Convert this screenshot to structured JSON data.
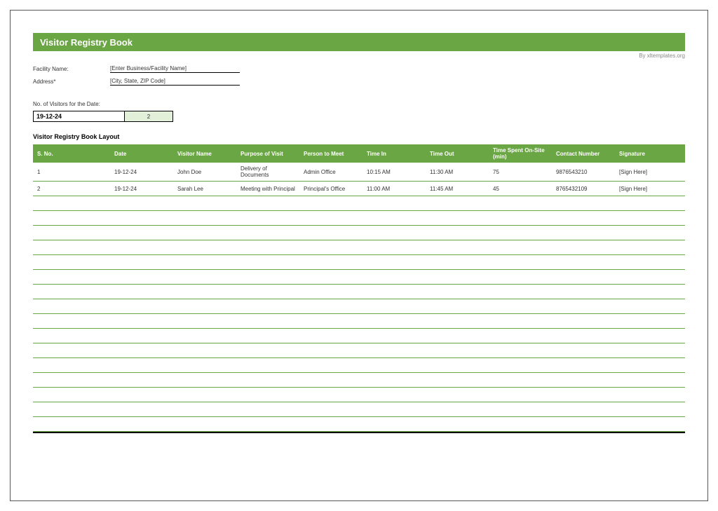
{
  "title": "Visitor Registry Book",
  "byline": "By xltemplates.org",
  "meta": {
    "facility_label": "Facility Name:",
    "facility_value": "[Enter Business/Facility Name]",
    "address_label": "Address*",
    "address_value": "[City, State, ZIP Code]"
  },
  "count": {
    "label": "No. of Visitors for the Date:",
    "date": "19-12-24",
    "value": "2"
  },
  "layout_title": "Visitor Registry Book Layout",
  "table": {
    "columns": [
      "S. No.",
      "Date",
      "Visitor Name",
      "Purpose of Visit",
      "Person to Meet",
      "Time In",
      "Time Out",
      "Time Spent On-Site (min)",
      "Contact Number",
      "Signature"
    ],
    "col_widths": [
      "110px",
      "90px",
      "90px",
      "90px",
      "90px",
      "90px",
      "90px",
      "90px",
      "90px",
      "auto"
    ],
    "rows": [
      [
        "1",
        "19-12-24",
        "John Doe",
        "Delivery of Documents",
        "Admin Office",
        "10:15 AM",
        "11:30 AM",
        "75",
        "9876543210",
        "[Sign Here]"
      ],
      [
        "2",
        "19-12-24",
        "Sarah Lee",
        "Meeting with Principal",
        "Principal's Office",
        "11:00 AM",
        "11:45 AM",
        "45",
        "8765432109",
        "[Sign Here]"
      ]
    ],
    "empty_rows": 16
  },
  "colors": {
    "accent": "#6ba644",
    "accent_light": "#e2efd9",
    "text": "#333333",
    "background": "#ffffff"
  }
}
